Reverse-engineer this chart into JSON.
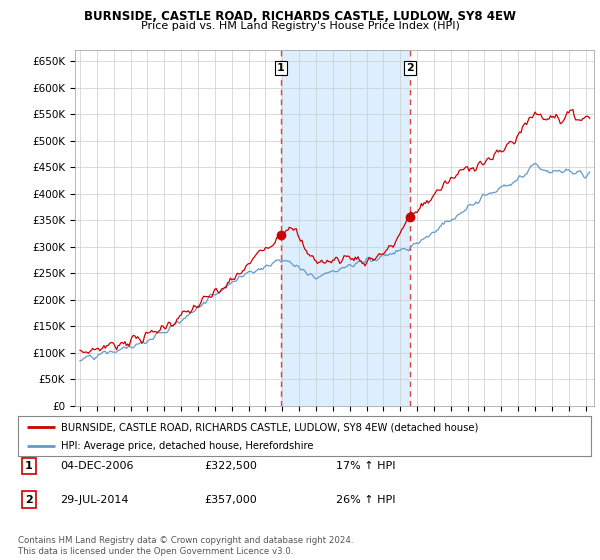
{
  "title": "BURNSIDE, CASTLE ROAD, RICHARDS CASTLE, LUDLOW, SY8 4EW",
  "subtitle": "Price paid vs. HM Land Registry's House Price Index (HPI)",
  "legend_line1": "BURNSIDE, CASTLE ROAD, RICHARDS CASTLE, LUDLOW, SY8 4EW (detached house)",
  "legend_line2": "HPI: Average price, detached house, Herefordshire",
  "footer": "Contains HM Land Registry data © Crown copyright and database right 2024.\nThis data is licensed under the Open Government Licence v3.0.",
  "table": [
    {
      "num": "1",
      "date": "04-DEC-2006",
      "price": "£322,500",
      "change": "17% ↑ HPI"
    },
    {
      "num": "2",
      "date": "29-JUL-2014",
      "price": "£357,000",
      "change": "26% ↑ HPI"
    }
  ],
  "sale1_year": 2006.92,
  "sale1_price": 322500,
  "sale2_year": 2014.57,
  "sale2_price": 357000,
  "red_color": "#cc0000",
  "blue_color": "#6699cc",
  "vline_color": "#dd4444",
  "shade_color": "#ddeeff",
  "plot_bg": "#ffffff",
  "grid_color": "#cccccc",
  "ylim": [
    0,
    670000
  ],
  "xlim_start": 1994.7,
  "xlim_end": 2025.5,
  "yticks": [
    0,
    50000,
    100000,
    150000,
    200000,
    250000,
    300000,
    350000,
    400000,
    450000,
    500000,
    550000,
    600000,
    650000
  ],
  "xticks": [
    1995,
    1996,
    1997,
    1998,
    1999,
    2000,
    2001,
    2002,
    2003,
    2004,
    2005,
    2006,
    2007,
    2008,
    2009,
    2010,
    2011,
    2012,
    2013,
    2014,
    2015,
    2016,
    2017,
    2018,
    2019,
    2020,
    2021,
    2022,
    2023,
    2024,
    2025
  ]
}
